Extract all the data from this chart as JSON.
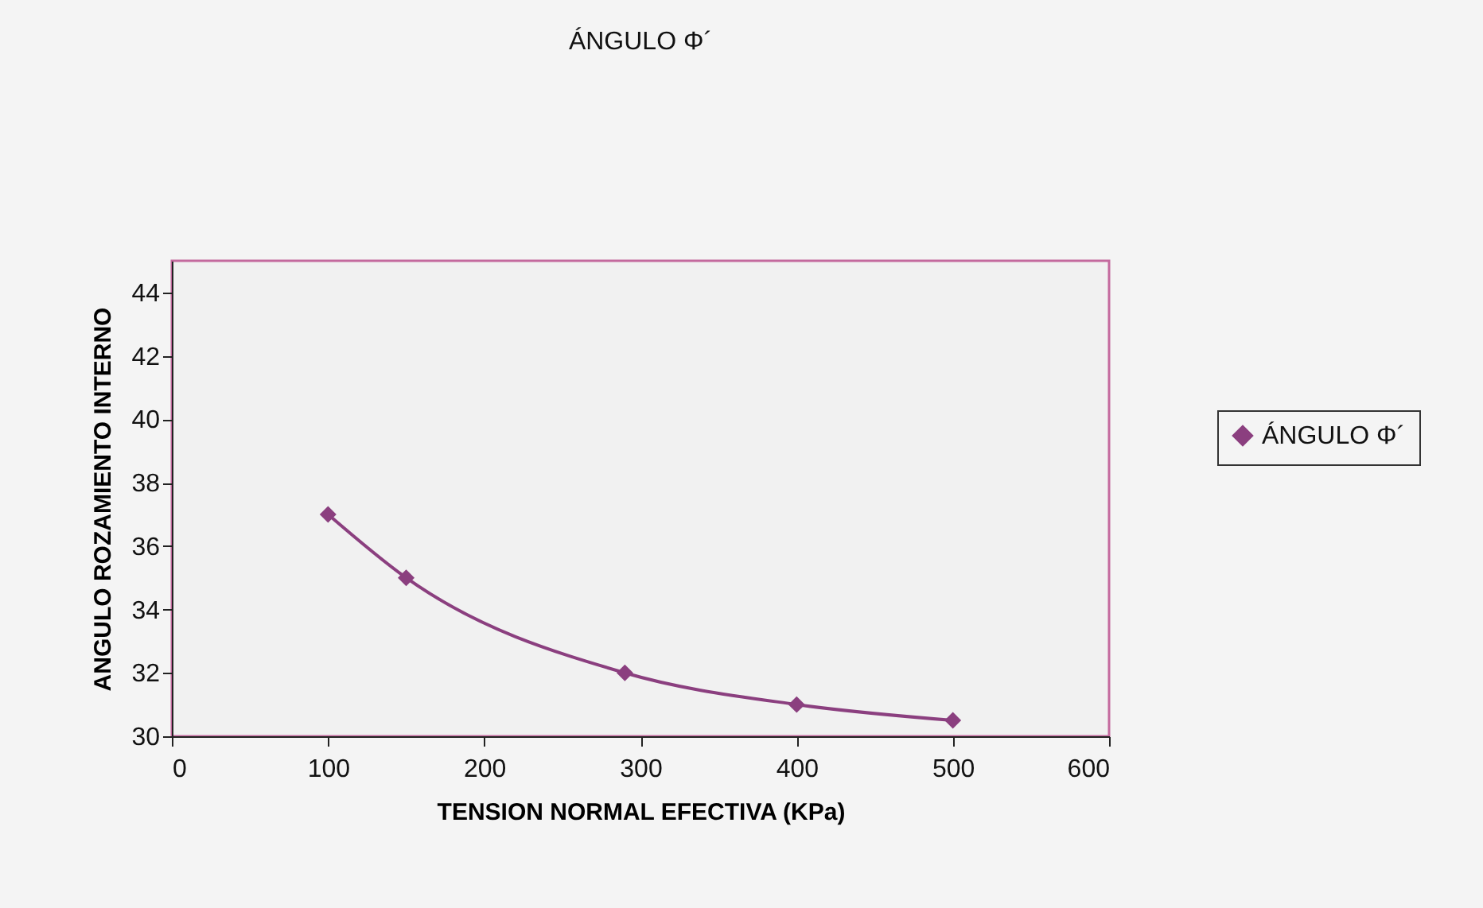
{
  "chart_data": {
    "type": "line",
    "title": "ÁNGULO Φ´",
    "xlabel": "TENSION NORMAL EFECTIVA (KPa)",
    "ylabel": "ANGULO ROZAMIENTO INTERNO",
    "x": [
      100,
      150,
      290,
      400,
      500
    ],
    "series": [
      {
        "name": "ÁNGULO Φ´",
        "color": "#8b3f7f",
        "values": [
          37,
          35,
          32,
          31,
          30.5
        ]
      }
    ],
    "xlim": [
      0,
      600
    ],
    "xticks": [
      0,
      100,
      200,
      300,
      400,
      500,
      600
    ],
    "ylim": [
      30,
      45
    ],
    "yticks": [
      30,
      32,
      34,
      36,
      38,
      40,
      42,
      44
    ],
    "grid": false,
    "legend": "right",
    "marker": "diamond",
    "line_style": "solid"
  }
}
